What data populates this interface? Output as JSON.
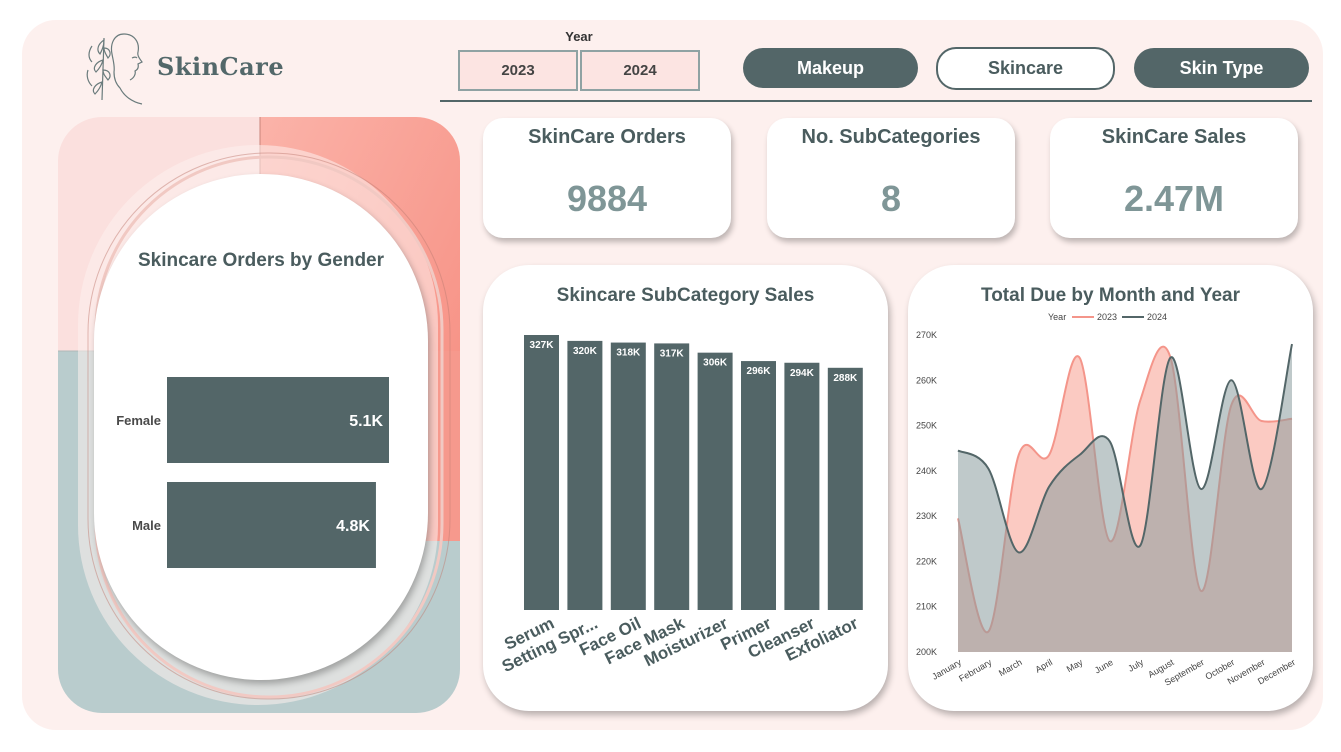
{
  "header": {
    "logo_text": "SkinCare",
    "year_slicer": {
      "title": "Year",
      "options": [
        "2023",
        "2024"
      ]
    },
    "nav": [
      {
        "label": "Makeup",
        "style": "dark"
      },
      {
        "label": "Skincare",
        "style": "light"
      },
      {
        "label": "Skin Type",
        "style": "dark"
      }
    ]
  },
  "kpis": [
    {
      "title": "SkinCare Orders",
      "value": "9884"
    },
    {
      "title": "No. SubCategories",
      "value": "8"
    },
    {
      "title": "SkinCare Sales",
      "value": "2.47M"
    }
  ],
  "colors": {
    "dark": "#536668",
    "pink": "#f4958a",
    "grey_fill": "#aebcbd",
    "pink_fill": "#f9c2ba",
    "bg": "#fdf0ee"
  },
  "chart_data": [
    {
      "type": "bar",
      "orientation": "horizontal",
      "title": "Skincare Orders by Gender",
      "categories": [
        "Female",
        "Male"
      ],
      "values": [
        5100,
        4800
      ],
      "data_labels": [
        "5.1K",
        "4.8K"
      ],
      "xlim": [
        0,
        5100
      ]
    },
    {
      "type": "bar",
      "title": "Skincare SubCategory Sales",
      "categories": [
        "Serum",
        "Setting Spr...",
        "Face Oil",
        "Face Mask",
        "Moisturizer",
        "Primer",
        "Cleanser",
        "Exfoliator"
      ],
      "values": [
        327000,
        320000,
        318000,
        317000,
        306000,
        296000,
        294000,
        288000
      ],
      "data_labels": [
        "327K",
        "320K",
        "318K",
        "317K",
        "306K",
        "296K",
        "294K",
        "288K"
      ],
      "ylim": [
        0,
        327000
      ]
    },
    {
      "type": "area",
      "title": "Total Due by Month and Year",
      "legend_title": "Year",
      "categories": [
        "January",
        "February",
        "March",
        "April",
        "May",
        "June",
        "July",
        "August",
        "September",
        "October",
        "November",
        "December"
      ],
      "series": [
        {
          "name": "2023",
          "color": "#f4958a",
          "values": [
            229500,
            204500,
            243500,
            243500,
            265000,
            224500,
            255500,
            265000,
            213500,
            254500,
            251000,
            251500
          ]
        },
        {
          "name": "2024",
          "color": "#536668",
          "values": [
            244500,
            240500,
            222000,
            236500,
            243500,
            246500,
            223500,
            265000,
            236000,
            260000,
            236000,
            268000
          ]
        }
      ],
      "ylim": [
        200000,
        270000
      ],
      "yticks": [
        "200K",
        "210K",
        "220K",
        "230K",
        "240K",
        "250K",
        "260K",
        "270K"
      ]
    }
  ]
}
